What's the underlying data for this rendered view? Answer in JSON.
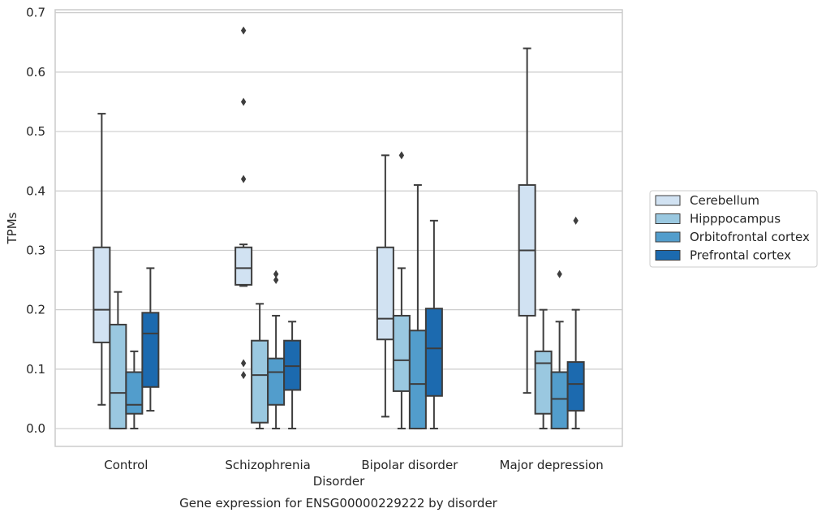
{
  "chart_data": {
    "type": "box",
    "xlabel": "Disorder",
    "ylabel": "TPMs",
    "caption": "Gene expression for ENSG00000229222 by disorder",
    "ylim": [
      -0.03,
      0.705
    ],
    "yticks": [
      "0.0",
      "0.1",
      "0.2",
      "0.3",
      "0.4",
      "0.5",
      "0.6",
      "0.7"
    ],
    "ytick_values": [
      0.0,
      0.1,
      0.2,
      0.3,
      0.4,
      0.5,
      0.6,
      0.7
    ],
    "grid": true,
    "legend_position": "right",
    "categories": [
      "Control",
      "Schizophrenia",
      "Bipolar disorder",
      "Major depression"
    ],
    "series": [
      {
        "name": "Cerebellum",
        "color": "#d1e2f2",
        "boxes": [
          {
            "min": 0.04,
            "q1": 0.145,
            "median": 0.2,
            "q3": 0.305,
            "max": 0.53,
            "outliers": []
          },
          {
            "min": 0.24,
            "q1": 0.242,
            "median": 0.27,
            "q3": 0.305,
            "max": 0.31,
            "outliers": [
              0.67,
              0.55,
              0.42,
              0.11,
              0.09
            ]
          },
          {
            "min": 0.02,
            "q1": 0.15,
            "median": 0.185,
            "q3": 0.305,
            "max": 0.46,
            "outliers": []
          },
          {
            "min": 0.06,
            "q1": 0.19,
            "median": 0.3,
            "q3": 0.41,
            "max": 0.64,
            "outliers": []
          }
        ]
      },
      {
        "name": "Hipppocampus",
        "color": "#9ac8e0",
        "boxes": [
          {
            "min": 0.0,
            "q1": 0.0,
            "median": 0.06,
            "q3": 0.175,
            "max": 0.23,
            "outliers": []
          },
          {
            "min": 0.0,
            "q1": 0.01,
            "median": 0.09,
            "q3": 0.148,
            "max": 0.21,
            "outliers": []
          },
          {
            "min": 0.0,
            "q1": 0.063,
            "median": 0.115,
            "q3": 0.19,
            "max": 0.27,
            "outliers": [
              0.46
            ]
          },
          {
            "min": 0.0,
            "q1": 0.025,
            "median": 0.11,
            "q3": 0.13,
            "max": 0.2,
            "outliers": []
          }
        ]
      },
      {
        "name": "Orbitofrontal cortex",
        "color": "#529dcc",
        "boxes": [
          {
            "min": 0.0,
            "q1": 0.025,
            "median": 0.04,
            "q3": 0.095,
            "max": 0.13,
            "outliers": []
          },
          {
            "min": 0.0,
            "q1": 0.04,
            "median": 0.095,
            "q3": 0.118,
            "max": 0.19,
            "outliers": [
              0.26,
              0.25
            ]
          },
          {
            "min": 0.0,
            "q1": 0.0,
            "median": 0.075,
            "q3": 0.165,
            "max": 0.41,
            "outliers": []
          },
          {
            "min": 0.0,
            "q1": 0.0,
            "median": 0.05,
            "q3": 0.095,
            "max": 0.18,
            "outliers": [
              0.26
            ]
          }
        ]
      },
      {
        "name": "Prefrontal cortex",
        "color": "#1c6aaf",
        "boxes": [
          {
            "min": 0.03,
            "q1": 0.07,
            "median": 0.16,
            "q3": 0.195,
            "max": 0.27,
            "outliers": []
          },
          {
            "min": 0.0,
            "q1": 0.065,
            "median": 0.105,
            "q3": 0.148,
            "max": 0.18,
            "outliers": []
          },
          {
            "min": 0.0,
            "q1": 0.055,
            "median": 0.135,
            "q3": 0.202,
            "max": 0.35,
            "outliers": []
          },
          {
            "min": 0.0,
            "q1": 0.03,
            "median": 0.075,
            "q3": 0.112,
            "max": 0.2,
            "outliers": [
              0.35
            ]
          }
        ]
      }
    ]
  }
}
